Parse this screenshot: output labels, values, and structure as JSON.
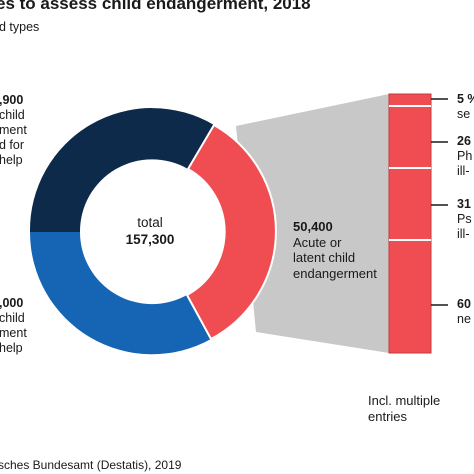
{
  "title": "es to assess child endangerment, 2018",
  "subtitle": "d types",
  "chart_data": {
    "type": "pie",
    "center_label": "total",
    "total_label": "157,300",
    "slices": [
      {
        "value_label": "50,400",
        "lines": [
          "Acute or",
          "latent child",
          "endangerment"
        ],
        "color": "#f04d52"
      },
      {
        "value_label": ",000",
        "lines": [
          "child",
          "ment",
          "help"
        ],
        "color": "#1565b4"
      },
      {
        "value_label": ",900",
        "lines": [
          "child",
          "ment",
          "d for",
          "help"
        ],
        "color": "#0e2a4a"
      }
    ],
    "breakdown": [
      {
        "value_label": "5 %",
        "lines": [
          "se"
        ]
      },
      {
        "value_label": "26",
        "lines": [
          "Ph",
          "ill-"
        ]
      },
      {
        "value_label": "31",
        "lines": [
          "Ps",
          "ill-"
        ]
      },
      {
        "value_label": "60",
        "lines": [
          "ne"
        ]
      }
    ],
    "breakdown_note": [
      "Incl. multiple",
      "entries"
    ]
  },
  "source": "sches Bundesamt (Destatis), 2019"
}
